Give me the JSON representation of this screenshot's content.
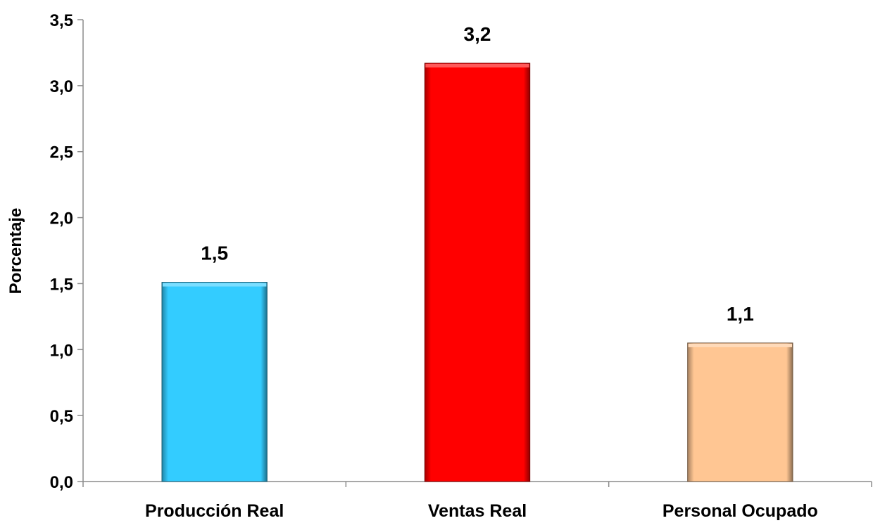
{
  "chart_data": {
    "type": "bar",
    "title": "",
    "xlabel": "",
    "ylabel": "Porcentaje",
    "ylim": [
      0,
      3.5
    ],
    "yticks": [
      0,
      0.5,
      1.0,
      1.5,
      2.0,
      2.5,
      3.0,
      3.5
    ],
    "ytick_labels": [
      "0,0",
      "0,5",
      "1,0",
      "1,5",
      "2,0",
      "2,5",
      "3,0",
      "3,5"
    ],
    "grid": false,
    "legend": "none",
    "categories": [
      "Producción Real",
      "Ventas Real",
      "Personal Ocupado"
    ],
    "values": [
      1.51,
      3.17,
      1.05
    ],
    "data_labels": [
      "1,5",
      "3,2",
      "1,1"
    ],
    "colors": [
      "#33ccff",
      "#ff0000",
      "#ffc693"
    ]
  }
}
